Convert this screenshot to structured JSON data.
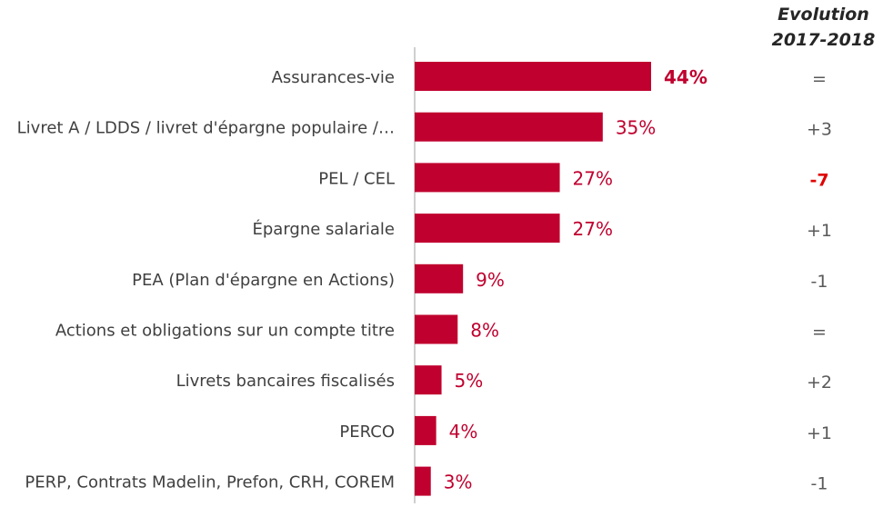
{
  "evolution_header": {
    "line1": "Evolution",
    "line2": "2017-2018"
  },
  "colors": {
    "bar": "#c0002e",
    "value_text": "#c0002e",
    "category_text": "#404040",
    "evolution_text": "#595959",
    "evolution_highlight": "#e00000",
    "axis": "#bfbfbf"
  },
  "chart_data": {
    "type": "bar",
    "orientation": "horizontal",
    "categories": [
      "Assurances-vie",
      "Livret A / LDDS / livret d'épargne populaire /…",
      "PEL / CEL",
      "Épargne salariale",
      "PEA (Plan d'épargne en Actions)",
      "Actions et obligations sur un compte titre",
      "Livrets bancaires fiscalisés",
      "PERCO",
      "PERP, Contrats Madelin, Prefon, CRH, COREM"
    ],
    "values": [
      44,
      35,
      27,
      27,
      9,
      8,
      5,
      4,
      3
    ],
    "value_labels": [
      "44%",
      "35%",
      "27%",
      "27%",
      "9%",
      "8%",
      "5%",
      "4%",
      "3%"
    ],
    "value_label_bold": [
      true,
      false,
      false,
      false,
      false,
      false,
      false,
      false,
      false
    ],
    "evolution": [
      "=",
      "+3",
      "-7",
      "+1",
      "-1",
      "=",
      "+2",
      "+1",
      "-1"
    ],
    "evolution_highlight": [
      false,
      false,
      true,
      false,
      false,
      false,
      false,
      false,
      false
    ],
    "xlim": [
      0,
      44
    ],
    "grid": false,
    "legend": "none"
  }
}
